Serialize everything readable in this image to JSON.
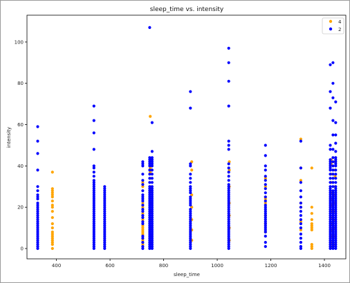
{
  "chart_data": {
    "type": "scatter",
    "title": "sleep_time vs. intensity",
    "xlabel": "sleep_time",
    "ylabel": "intensity",
    "xlim": [
      290,
      1480
    ],
    "ylim": [
      -5,
      113
    ],
    "xticks": [
      400,
      600,
      800,
      1000,
      1200,
      1400
    ],
    "yticks": [
      0,
      20,
      40,
      60,
      80,
      100
    ],
    "grid": false,
    "legend_position": "top-right",
    "series": [
      {
        "name": "4",
        "color": "#FFA500",
        "columns": [
          {
            "x": 385,
            "values": [
              37,
              29,
              28,
              27,
              26,
              25,
              23,
              21,
              20,
              18,
              15,
              12,
              10,
              8,
              7,
              6,
              5,
              4,
              3,
              2,
              0
            ]
          },
          {
            "x": 722,
            "values": [
              32,
              30,
              22,
              20,
              17,
              14,
              11,
              10,
              9,
              8,
              7,
              4,
              2
            ]
          },
          {
            "x": 750,
            "values": [
              64,
              43,
              39,
              37,
              34,
              30,
              28,
              22,
              18,
              14,
              10,
              6,
              3
            ]
          },
          {
            "x": 905,
            "values": [
              42,
              38,
              26,
              20,
              14,
              9,
              4
            ]
          },
          {
            "x": 1045,
            "values": [
              42,
              38,
              30,
              22,
              16,
              10,
              4
            ]
          },
          {
            "x": 1180,
            "values": [
              34,
              30,
              25,
              24,
              22,
              16,
              12,
              8
            ]
          },
          {
            "x": 1312,
            "values": [
              53,
              39,
              33,
              22,
              20,
              13,
              9
            ]
          },
          {
            "x": 1353,
            "values": [
              39,
              20,
              17,
              14,
              12,
              11,
              10,
              9,
              2,
              1,
              0
            ]
          },
          {
            "x": 1425,
            "values": [
              43,
              41,
              36,
              32,
              27,
              24,
              21,
              18,
              15,
              12,
              9,
              6,
              3,
              1
            ]
          },
          {
            "x": 1440,
            "values": [
              42,
              38,
              35,
              30,
              26,
              22,
              18,
              14,
              10,
              6,
              2
            ]
          }
        ]
      },
      {
        "name": "2",
        "color": "#0000FF",
        "columns": [
          {
            "x": 330,
            "values": [
              59,
              52,
              46,
              38,
              30,
              28,
              26,
              25,
              24,
              22,
              21,
              20,
              19,
              18,
              17,
              16,
              15,
              14,
              13,
              12,
              11,
              10,
              9,
              8,
              7,
              6,
              5,
              4,
              3,
              2,
              1,
              0
            ]
          },
          {
            "x": 540,
            "values": [
              69,
              62,
              56,
              48,
              40,
              39,
              37,
              35,
              33,
              32,
              31,
              30,
              29,
              28,
              27,
              26,
              25,
              24,
              23,
              22,
              21,
              20,
              19,
              18,
              17,
              16,
              15,
              14,
              13,
              12,
              11,
              10,
              9,
              8,
              7,
              6,
              5,
              4,
              3,
              2,
              1,
              0
            ]
          },
          {
            "x": 580,
            "values": [
              30,
              29,
              28,
              27,
              26,
              25,
              24,
              23,
              22,
              21,
              20,
              19,
              18,
              17,
              16,
              15,
              14,
              13,
              12,
              11,
              10,
              9,
              8,
              7,
              6,
              5,
              4,
              3,
              2,
              1,
              0
            ]
          },
          {
            "x": 722,
            "values": [
              42,
              41,
              40,
              36,
              33,
              31,
              28,
              26,
              25,
              24,
              23,
              21,
              19,
              18,
              16,
              15,
              13,
              12,
              6,
              5,
              3,
              1,
              0
            ]
          },
          {
            "x": 748,
            "values": [
              107,
              44,
              43,
              42,
              41,
              40,
              38,
              36,
              34,
              32,
              30,
              29,
              28,
              27,
              26,
              25,
              24,
              23,
              22,
              21,
              20,
              19,
              18,
              17,
              16,
              15,
              14,
              13,
              12,
              11,
              10,
              9,
              8,
              7,
              6,
              5,
              4,
              3,
              2,
              1,
              0
            ]
          },
          {
            "x": 757,
            "values": [
              61,
              47,
              44,
              43,
              42,
              41,
              40,
              38,
              36,
              34,
              32,
              30,
              29,
              28,
              27,
              26,
              25,
              24,
              23,
              22,
              21,
              20,
              19,
              18,
              17,
              16,
              15,
              14,
              13,
              12,
              11,
              10,
              9,
              8,
              7,
              6,
              5,
              4,
              3,
              2,
              1,
              0
            ]
          },
          {
            "x": 900,
            "values": [
              76,
              68,
              41,
              40,
              36,
              34,
              32,
              30,
              29,
              28,
              27,
              25,
              24,
              23,
              22,
              21,
              19,
              18,
              17,
              16,
              15,
              14,
              13,
              12,
              11,
              10,
              9,
              8,
              7,
              6,
              5,
              4,
              3,
              2,
              1,
              0
            ]
          },
          {
            "x": 1043,
            "values": [
              97,
              90,
              81,
              69,
              52,
              50,
              48,
              41,
              39,
              37,
              35,
              33,
              31,
              30,
              29,
              28,
              27,
              26,
              25,
              24,
              23,
              22,
              21,
              20,
              19,
              18,
              17,
              16,
              15,
              14,
              13,
              12,
              11,
              10,
              9,
              8,
              7,
              6,
              5,
              4,
              3,
              2,
              1,
              0
            ]
          },
          {
            "x": 1180,
            "values": [
              50,
              45,
              40,
              38,
              35,
              33,
              31,
              29,
              27,
              25,
              23,
              21,
              20,
              19,
              18,
              17,
              16,
              15,
              14,
              13,
              12,
              11,
              10,
              9,
              8,
              6,
              3,
              1
            ]
          },
          {
            "x": 1312,
            "values": [
              52,
              39,
              32,
              28,
              25,
              22,
              20,
              18,
              16,
              14,
              12,
              10,
              7,
              5,
              3,
              1,
              0
            ]
          },
          {
            "x": 1422,
            "values": [
              89,
              76,
              68,
              50,
              48,
              43,
              42,
              41,
              40,
              39,
              38,
              36,
              34,
              32,
              30,
              29,
              28,
              27,
              26,
              25,
              24,
              23,
              22,
              21,
              20,
              19,
              18,
              17,
              16,
              15,
              14,
              13,
              12,
              11,
              10,
              9,
              8,
              7,
              6,
              5,
              4,
              3,
              2,
              1,
              0
            ]
          },
          {
            "x": 1432,
            "values": [
              90,
              80,
              73,
              62,
              55,
              48,
              44,
              42,
              40,
              38,
              36,
              34,
              32,
              30,
              28,
              27,
              26,
              25,
              24,
              23,
              22,
              21,
              20,
              19,
              18,
              17,
              16,
              15,
              14,
              13,
              12,
              11,
              10,
              9,
              8,
              7,
              6,
              5,
              4,
              3,
              2,
              1,
              0
            ]
          },
          {
            "x": 1442,
            "values": [
              71,
              61,
              55,
              51,
              47,
              44,
              43,
              42,
              41,
              40,
              38,
              36,
              34,
              32,
              30,
              29,
              28,
              27,
              26,
              25,
              24,
              23,
              22,
              21,
              20,
              19,
              18,
              17,
              16,
              15,
              14,
              13,
              12,
              11,
              10,
              9,
              8,
              7,
              6,
              5,
              4,
              3,
              2,
              1,
              0
            ]
          }
        ]
      }
    ]
  }
}
